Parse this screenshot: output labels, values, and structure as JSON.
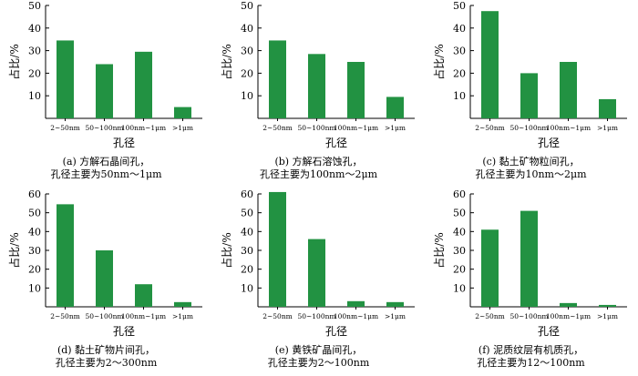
{
  "chart_data": [
    {
      "type": "bar",
      "categories": [
        "2~50nm",
        "50~100nm",
        "100nm~1μm",
        ">1μm"
      ],
      "values": [
        34.5,
        24,
        29.5,
        5
      ],
      "ylim": [
        0,
        50
      ],
      "yticks": [
        10,
        20,
        30,
        40,
        50
      ],
      "xlabel": "孔径",
      "ylabel": "占比/%",
      "caption": [
        "(a) 方解石晶间孔，",
        "孔径主要为50nm～1μm"
      ]
    },
    {
      "type": "bar",
      "categories": [
        "2~50nm",
        "50~100nm",
        "100nm~1μm",
        ">1μm"
      ],
      "values": [
        34.5,
        28.5,
        25,
        9.5
      ],
      "ylim": [
        0,
        50
      ],
      "yticks": [
        10,
        20,
        30,
        40,
        50
      ],
      "xlabel": "孔径",
      "ylabel": "占比/%",
      "caption": [
        "(b) 方解石溶蚀孔，",
        "孔径主要为100nm～2μm"
      ]
    },
    {
      "type": "bar",
      "categories": [
        "2~50nm",
        "50~100nm",
        "100nm~1μm",
        ">1μm"
      ],
      "values": [
        47.5,
        20,
        25,
        8.5
      ],
      "ylim": [
        0,
        50
      ],
      "yticks": [
        10,
        20,
        30,
        40,
        50
      ],
      "xlabel": "孔径",
      "ylabel": "占比/%",
      "caption": [
        "(c) 黏土矿物粒间孔，",
        "孔径主要为10nm～2μm"
      ]
    },
    {
      "type": "bar",
      "categories": [
        "2~50nm",
        "50~100nm",
        "100nm~1μm",
        ">1μm"
      ],
      "values": [
        54.5,
        30,
        12,
        2.5
      ],
      "ylim": [
        0,
        60
      ],
      "yticks": [
        10,
        20,
        30,
        40,
        50,
        60
      ],
      "xlabel": "孔径",
      "ylabel": "占比/%",
      "caption": [
        "(d) 黏土矿物片间孔，",
        "孔径主要为2～300nm"
      ]
    },
    {
      "type": "bar",
      "categories": [
        "2~50nm",
        "50~100nm",
        "100nm~1μm",
        ">1μm"
      ],
      "values": [
        61,
        36,
        3,
        2.5
      ],
      "ylim": [
        0,
        60
      ],
      "yticks": [
        10,
        20,
        30,
        40,
        50,
        60
      ],
      "xlabel": "孔径",
      "ylabel": "占比/%",
      "caption": [
        "(e) 黄铁矿晶间孔，",
        "孔径主要为2～100nm"
      ]
    },
    {
      "type": "bar",
      "categories": [
        "2~50nm",
        "50~100nm",
        "100nm~1μm",
        ">1μm"
      ],
      "values": [
        41,
        51,
        2,
        1
      ],
      "ylim": [
        0,
        60
      ],
      "yticks": [
        10,
        20,
        30,
        40,
        50,
        60
      ],
      "xlabel": "孔径",
      "ylabel": "占比/%",
      "caption": [
        "(f) 泥质纹层有机质孔，",
        "孔径主要为12～100nm"
      ]
    }
  ],
  "colors": {
    "bar": "#229242",
    "axis": "#000000"
  }
}
